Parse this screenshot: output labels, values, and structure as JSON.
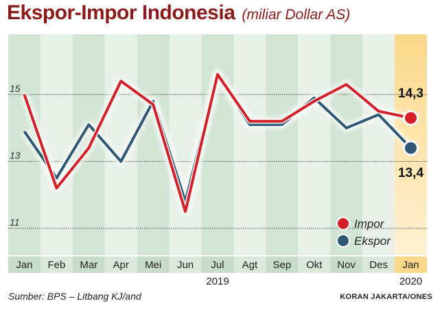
{
  "header": {
    "title": "Ekspor-Impor Indonesia",
    "subtitle": "(miliar Dollar AS)"
  },
  "footer": {
    "source": "Sumber: BPS – Litbang KJ/and",
    "credit": "KORAN JAKARTA/ONES"
  },
  "colors": {
    "impor": "#d42027",
    "ekspor": "#2f5875",
    "band_dark": "#d2e4d3",
    "band_light": "#e8f1e8",
    "highlight": "#fbd88a",
    "axis_band": "#cfe0cf",
    "title": "#8b1a1a"
  },
  "chart_data": {
    "type": "line",
    "categories": [
      "Jan",
      "Feb",
      "Mar",
      "Apr",
      "Mei",
      "Jun",
      "Jul",
      "Agt",
      "Sep",
      "Okt",
      "Nov",
      "Des",
      "Jan"
    ],
    "year_labels": [
      {
        "label": "2019",
        "category_index": 6
      },
      {
        "label": "2020",
        "category_index": 12
      }
    ],
    "ylim": [
      10.2,
      16.8
    ],
    "yticks": [
      11,
      13,
      15
    ],
    "ytick_labels": [
      "11",
      "13",
      "15"
    ],
    "grid": true,
    "legend_position": "bottom-right",
    "series": [
      {
        "name": "Impor",
        "key": "impor",
        "values": [
          15.0,
          12.2,
          13.4,
          15.4,
          14.7,
          11.5,
          15.6,
          14.2,
          14.2,
          14.8,
          15.3,
          14.5,
          14.3
        ],
        "end_label": "14,3"
      },
      {
        "name": "Ekspor",
        "key": "ekspor",
        "values": [
          13.9,
          12.5,
          14.1,
          13.0,
          14.8,
          11.8,
          15.6,
          14.1,
          14.1,
          14.9,
          14.0,
          14.4,
          13.4
        ],
        "end_label": "13,4"
      }
    ]
  }
}
